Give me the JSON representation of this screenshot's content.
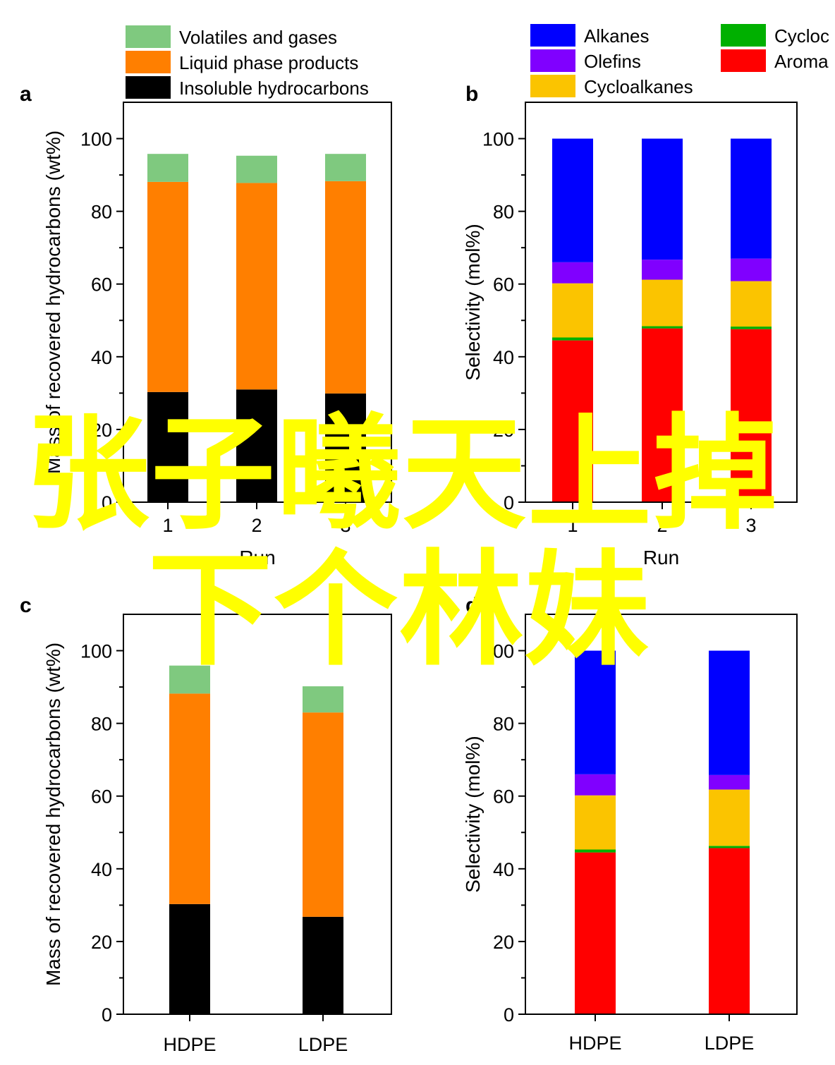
{
  "colors": {
    "volatiles": "#7fc97f",
    "liquid": "#ff7f00",
    "insoluble": "#000000",
    "alkanes": "#0000ff",
    "olefins": "#8000ff",
    "cycloalkanes": "#fbc400",
    "cycloolefins": "#00b000",
    "aromatics": "#ff0000"
  },
  "watermark": {
    "line1": "张子曦天上掉",
    "line2": "下个林妹"
  },
  "chart_data": [
    {
      "panel": "a",
      "type": "bar",
      "stacked": true,
      "xlabel": "Run",
      "ylabel": "Mass of recovered hydrocarbons (wt%)",
      "categories": [
        "1",
        "2",
        "3"
      ],
      "ylim": [
        0,
        110
      ],
      "yticks": [
        "0",
        "20",
        "40",
        "60",
        "80",
        "100"
      ],
      "legend_position": "top",
      "series": [
        {
          "name": "Insoluble hydrocarbons",
          "color_key": "insoluble",
          "values": [
            30.3,
            31.0,
            29.9
          ]
        },
        {
          "name": "Liquid phase products",
          "color_key": "liquid",
          "values": [
            57.8,
            56.8,
            58.4
          ]
        },
        {
          "name": "Volatiles and gases",
          "color_key": "volatiles",
          "values": [
            7.7,
            7.5,
            7.5
          ]
        }
      ]
    },
    {
      "panel": "b",
      "type": "bar",
      "stacked": true,
      "xlabel": "Run",
      "ylabel": "Selectivity (mol%)",
      "categories": [
        "1",
        "2",
        "3"
      ],
      "ylim": [
        0,
        110
      ],
      "yticks": [
        "0",
        "20",
        "40",
        "60",
        "80",
        "100"
      ],
      "legend_position": "top",
      "legend_visible_labels": [
        "Alkanes",
        "Olefins",
        "Cycloalkanes",
        "Cycloc",
        "Aroma"
      ],
      "series": [
        {
          "name": "Aromatics",
          "color_key": "aromatics",
          "values": [
            44.5,
            47.8,
            47.6
          ]
        },
        {
          "name": "Cycloolefins",
          "color_key": "cycloolefins",
          "values": [
            0.8,
            0.6,
            0.7
          ]
        },
        {
          "name": "Cycloalkanes",
          "color_key": "cycloalkanes",
          "values": [
            14.9,
            12.8,
            12.5
          ]
        },
        {
          "name": "Olefins",
          "color_key": "olefins",
          "values": [
            5.8,
            5.5,
            6.2
          ]
        },
        {
          "name": "Alkanes",
          "color_key": "alkanes",
          "values": [
            34.0,
            33.3,
            33.0
          ]
        }
      ]
    },
    {
      "panel": "c",
      "type": "bar",
      "stacked": true,
      "xlabel": "",
      "ylabel": "Mass of recovered hydrocarbons (wt%)",
      "categories": [
        "HDPE",
        "LDPE"
      ],
      "ylim": [
        0,
        110
      ],
      "yticks": [
        "0",
        "20",
        "40",
        "60",
        "80",
        "100"
      ],
      "series": [
        {
          "name": "Insoluble hydrocarbons",
          "color_key": "insoluble",
          "values": [
            30.3,
            26.8
          ]
        },
        {
          "name": "Liquid phase products",
          "color_key": "liquid",
          "values": [
            57.9,
            56.2
          ]
        },
        {
          "name": "Volatiles and gases",
          "color_key": "volatiles",
          "values": [
            7.7,
            7.2
          ]
        }
      ]
    },
    {
      "panel": "d",
      "type": "bar",
      "stacked": true,
      "xlabel": "",
      "ylabel": "Selectivity (mol%)",
      "categories": [
        "HDPE",
        "LDPE"
      ],
      "ylim": [
        0,
        110
      ],
      "yticks": [
        "0",
        "20",
        "40",
        "60",
        "80",
        "100"
      ],
      "series": [
        {
          "name": "Aromatics",
          "color_key": "aromatics",
          "values": [
            44.5,
            45.7
          ]
        },
        {
          "name": "Cycloolefins",
          "color_key": "cycloolefins",
          "values": [
            0.8,
            0.6
          ]
        },
        {
          "name": "Cycloalkanes",
          "color_key": "cycloalkanes",
          "values": [
            14.9,
            15.5
          ]
        },
        {
          "name": "Olefins",
          "color_key": "olefins",
          "values": [
            5.8,
            4.0
          ]
        },
        {
          "name": "Alkanes",
          "color_key": "alkanes",
          "values": [
            34.0,
            34.2
          ]
        }
      ]
    }
  ]
}
